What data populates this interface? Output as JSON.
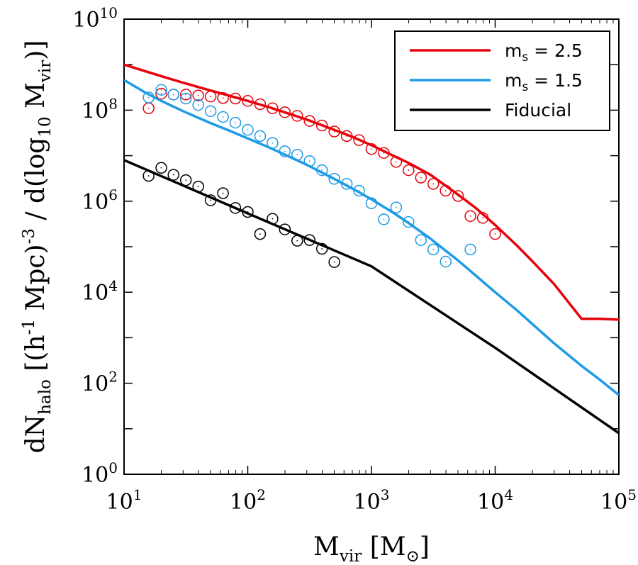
{
  "chart_data": {
    "type": "line",
    "xscale": "log",
    "yscale": "log",
    "xlim": [
      10,
      100000
    ],
    "ylim": [
      1,
      10000000000
    ],
    "xlabel": {
      "base": "M",
      "sub": "vir",
      "open": " [M",
      "sub2": "⊙",
      "close": "]"
    },
    "ylabel": {
      "p1": "dN",
      "p1_sub": "halo",
      "p2": " [(h",
      "p2_sup": "-1",
      "p3": " Mpc)",
      "p3_sup": "-3",
      "p4": " / d(log",
      "p4_sub": "10",
      "p5": " M",
      "p5_sub": "vir",
      "p6": ")]"
    },
    "xticks": [
      {
        "value": 10,
        "base": "10",
        "exp": "1"
      },
      {
        "value": 100,
        "base": "10",
        "exp": "2"
      },
      {
        "value": 1000,
        "base": "10",
        "exp": "3"
      },
      {
        "value": 10000,
        "base": "10",
        "exp": "4"
      },
      {
        "value": 100000,
        "base": "10",
        "exp": "5"
      }
    ],
    "yticks": [
      {
        "value": 1,
        "base": "10",
        "exp": "0"
      },
      {
        "value": 100,
        "base": "10",
        "exp": "2"
      },
      {
        "value": 10000,
        "base": "10",
        "exp": "4"
      },
      {
        "value": 1000000,
        "base": "10",
        "exp": "6"
      },
      {
        "value": 100000000,
        "base": "10",
        "exp": "8"
      },
      {
        "value": 10000000000,
        "base": "10",
        "exp": "10"
      }
    ],
    "legend": {
      "position": "top-right"
    },
    "series": [
      {
        "name": "m_s = 2.5",
        "legend_base": "m",
        "legend_sub": "s",
        "legend_rest": " = 2.5",
        "color": "#e8000b",
        "line": {
          "x": [
            10,
            15,
            20,
            30,
            50,
            70,
            100,
            150,
            200,
            300,
            500,
            700,
            1000,
            1500,
            2000,
            3000,
            5000,
            7000,
            10000,
            15000,
            20000,
            30000,
            50000,
            70000,
            100000
          ],
          "y": [
            1000000000.0,
            710000000.0,
            560000000.0,
            400000000.0,
            270000000.0,
            210000000.0,
            160000000.0,
            115000000.0,
            89000000.0,
            62000000.0,
            37000000.0,
            26000000.0,
            17000000.0,
            10000000.0,
            6900000.0,
            3800000.0,
            1400000.0,
            700000.0,
            300000.0,
            106000.0,
            48000.0,
            15000.0,
            2600.0,
            2600.0,
            2500.0
          ]
        },
        "points": {
          "x": [
            15.8,
            20,
            25.1,
            31.6,
            39.8,
            50.1,
            63.1,
            79.4,
            100,
            125.9,
            158.5,
            199.5,
            251.2,
            316.2,
            398.1,
            501.2,
            631,
            794.3,
            1000,
            1258.9,
            1584.9,
            1995.3,
            2511.9,
            3162.3,
            3981.1,
            5011.9,
            6309.6,
            7943.3,
            10000
          ],
          "y": [
            110000000.0,
            230000000.0,
            220000000.0,
            220000000.0,
            210000000.0,
            200000000.0,
            185000000.0,
            180000000.0,
            160000000.0,
            135000000.0,
            110000000.0,
            90000000.0,
            75000000.0,
            58000000.0,
            46000000.0,
            34000000.0,
            27000000.0,
            22000000.0,
            14000000.0,
            11500000.0,
            7300000.0,
            4800000.0,
            3300000.0,
            2400000.0,
            1700000.0,
            1300000.0,
            470000.0,
            430000.0,
            190000.0
          ]
        }
      },
      {
        "name": "m_s = 1.5",
        "legend_base": "m",
        "legend_sub": "s",
        "legend_rest": " = 1.5",
        "color": "#1e9be6",
        "line": {
          "x": [
            10,
            15,
            20,
            30,
            50,
            70,
            100,
            150,
            200,
            300,
            500,
            700,
            1000,
            1500,
            2000,
            3000,
            5000,
            7000,
            10000,
            15000,
            20000,
            30000,
            50000,
            70000,
            100000
          ],
          "y": [
            460000000.0,
            240000000.0,
            160000000.0,
            95000000.0,
            52000000.0,
            36000000.0,
            24000000.0,
            15000000.0,
            10500000.0,
            6300000.0,
            3100000.0,
            1900000.0,
            1100000.0,
            560000.0,
            330000.0,
            150000.0,
            50000.0,
            23000.0,
            10000.0,
            4000.0,
            2000.0,
            750.0,
            240.0,
            120.0,
            55
          ]
        },
        "points": {
          "x": [
            15.8,
            20,
            25.1,
            31.6,
            39.8,
            50.1,
            63.1,
            79.4,
            100,
            125.9,
            158.5,
            199.5,
            251.2,
            316.2,
            398.1,
            501.2,
            631,
            794.3,
            1000,
            1258.9,
            1584.9,
            1995.3,
            2511.9,
            3162.3,
            3981.1,
            6309.6
          ],
          "y": [
            190000000.0,
            280000000.0,
            220000000.0,
            180000000.0,
            130000000.0,
            95000000.0,
            71000000.0,
            53000000.0,
            37000000.0,
            27000000.0,
            19000000.0,
            12500000.0,
            10500000.0,
            7600000.0,
            4800000.0,
            3100000.0,
            2400000.0,
            1700000.0,
            900000.0,
            400000.0,
            730000.0,
            350000.0,
            140000.0,
            87000.0,
            47000.0,
            87000.0
          ]
        }
      },
      {
        "name": "Fiducial",
        "legend_base": "Fiducial",
        "legend_sub": "",
        "legend_rest": "",
        "color": "#000000",
        "line": {
          "x": [
            10,
            100,
            1000,
            10000,
            100000
          ],
          "y": [
            8000000.0,
            540000.0,
            37000.0,
            600.0,
            8
          ]
        },
        "points": {
          "x": [
            15.8,
            20,
            25.1,
            31.6,
            39.8,
            50.1,
            63.1,
            79.4,
            100,
            125.9,
            158.5,
            199.5,
            251.2,
            316.2,
            398.1,
            501.2
          ],
          "y": [
            3600000.0,
            5400000.0,
            3800000.0,
            2900000.0,
            2100000.0,
            1050000.0,
            1500000.0,
            710000.0,
            580000.0,
            190000.0,
            410000.0,
            240000.0,
            135000.0,
            140000.0,
            90000.0,
            46000.0
          ]
        }
      }
    ]
  }
}
